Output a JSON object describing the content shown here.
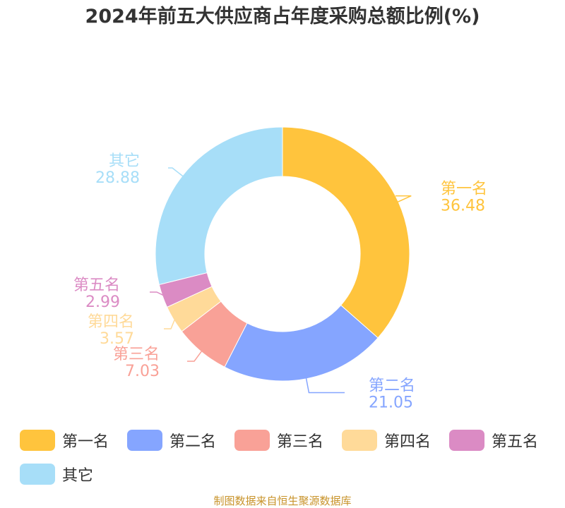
{
  "title": "2024年前五大供应商占年度采购总额比例(%)",
  "source": "制图数据来自恒生聚源数据库",
  "chart_data": {
    "type": "pie",
    "title": "2024年前五大供应商占年度采购总额比例(%)",
    "legend_position": "bottom",
    "slices": [
      {
        "label": "第一名",
        "value": 36.48,
        "value_text": "36.48",
        "color": "#FFC43D"
      },
      {
        "label": "第二名",
        "value": 21.05,
        "value_text": "21.05",
        "color": "#85A5FF"
      },
      {
        "label": "第三名",
        "value": 7.03,
        "value_text": "7.03",
        "color": "#F9A197"
      },
      {
        "label": "第四名",
        "value": 3.57,
        "value_text": "3.57",
        "color": "#FFDA99"
      },
      {
        "label": "第五名",
        "value": 2.99,
        "value_text": "2.99",
        "color": "#DB8BC4"
      },
      {
        "label": "其它",
        "value": 28.88,
        "value_text": "28.88",
        "color": "#A7DEF8"
      }
    ]
  }
}
